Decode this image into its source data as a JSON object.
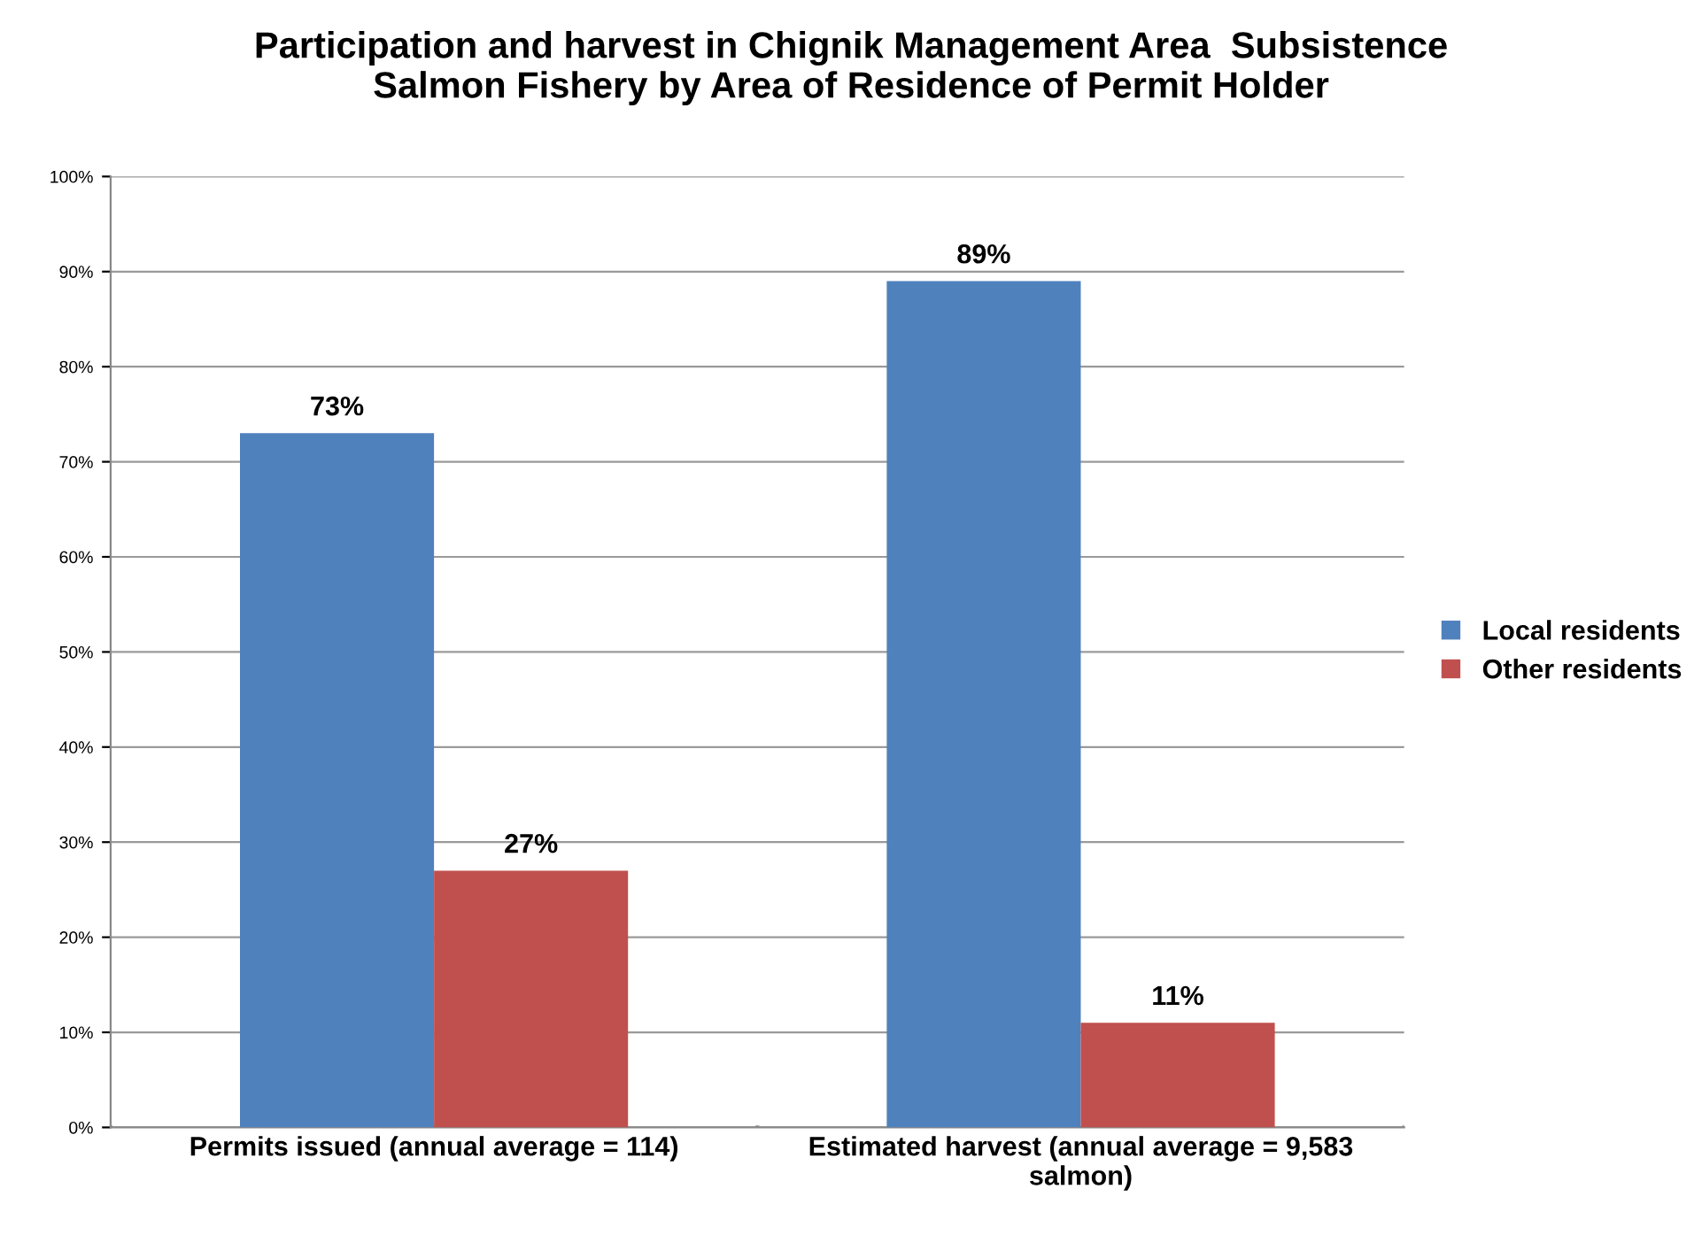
{
  "chart_data": {
    "type": "bar",
    "title": "Participation and harvest in Chignik Management Area  Subsistence\nSalmon Fishery by Area of Residence of Permit Holder",
    "categories": [
      "Permits issued (annual average = 114)",
      "Estimated harvest (annual average = 9,583\nsalmon)"
    ],
    "series": [
      {
        "name": "Local residents",
        "color": "#4f81bd",
        "values": [
          73,
          89
        ],
        "value_labels": [
          "73%",
          "89%"
        ]
      },
      {
        "name": "Other residents",
        "color": "#c0504d",
        "values": [
          27,
          11
        ],
        "value_labels": [
          "27%",
          "11%"
        ]
      }
    ],
    "ylim": [
      0,
      100
    ],
    "yticks": [
      {
        "value": 0,
        "label": "0%"
      },
      {
        "value": 10,
        "label": "10%"
      },
      {
        "value": 20,
        "label": "20%"
      },
      {
        "value": 30,
        "label": "30%"
      },
      {
        "value": 40,
        "label": "40%"
      },
      {
        "value": 50,
        "label": "50%"
      },
      {
        "value": 60,
        "label": "60%"
      },
      {
        "value": 70,
        "label": "70%"
      },
      {
        "value": 80,
        "label": "80%"
      },
      {
        "value": 90,
        "label": "90%"
      },
      {
        "value": 100,
        "label": "100%"
      }
    ],
    "grid": "y",
    "legend": "right"
  }
}
